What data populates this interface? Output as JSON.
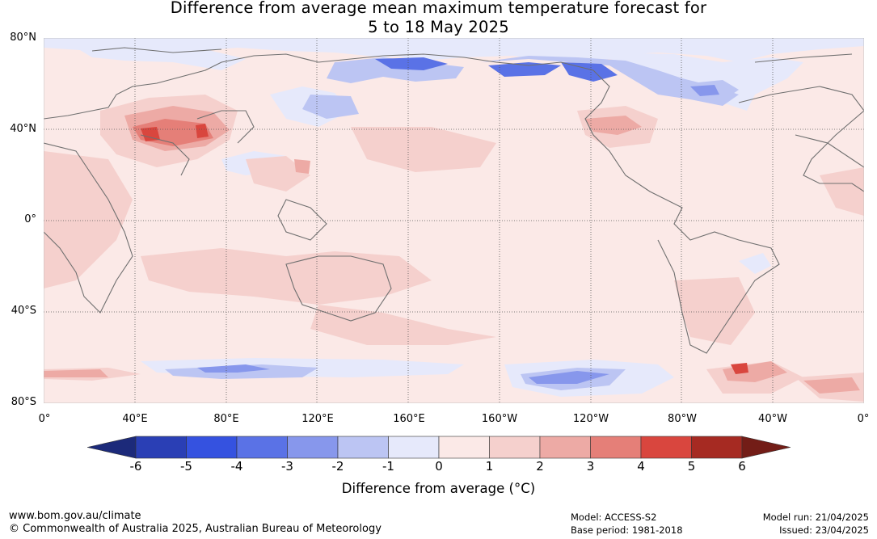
{
  "title": {
    "line1": "Difference from average mean maximum temperature forecast for",
    "line2": "5 to 18 May 2025"
  },
  "map": {
    "lat_labels": [
      "80°N",
      "40°N",
      "0°",
      "40°S",
      "80°S"
    ],
    "lon_labels": [
      "0°",
      "40°E",
      "80°E",
      "120°E",
      "160°E",
      "160°W",
      "120°W",
      "80°W",
      "40°W",
      "0°"
    ]
  },
  "colorbar": {
    "ticks": [
      "-6",
      "-5",
      "-4",
      "-3",
      "-2",
      "-1",
      "0",
      "1",
      "2",
      "3",
      "4",
      "5",
      "6"
    ],
    "colors": [
      "#1c2a7a",
      "#2a3fb5",
      "#3552e0",
      "#5a72e6",
      "#8797ec",
      "#bcc5f3",
      "#e6e9fb",
      "#fbe9e7",
      "#f5d0cd",
      "#edaaa5",
      "#e57f78",
      "#d9463e",
      "#a62a22",
      "#731d17"
    ],
    "label": "Difference from average ($^\\circ$C)",
    "label_display": "Difference from average (°C)"
  },
  "footer": {
    "website": "www.bom.gov.au/climate",
    "copyright": "© Commonwealth of Australia 2025, Australian Bureau of Meteorology",
    "model": "Model: ACCESS-S2",
    "base_period": "Base period: 1981-2018",
    "model_run": "Model run: 21/04/2025",
    "issued": "Issued: 23/04/2025"
  }
}
